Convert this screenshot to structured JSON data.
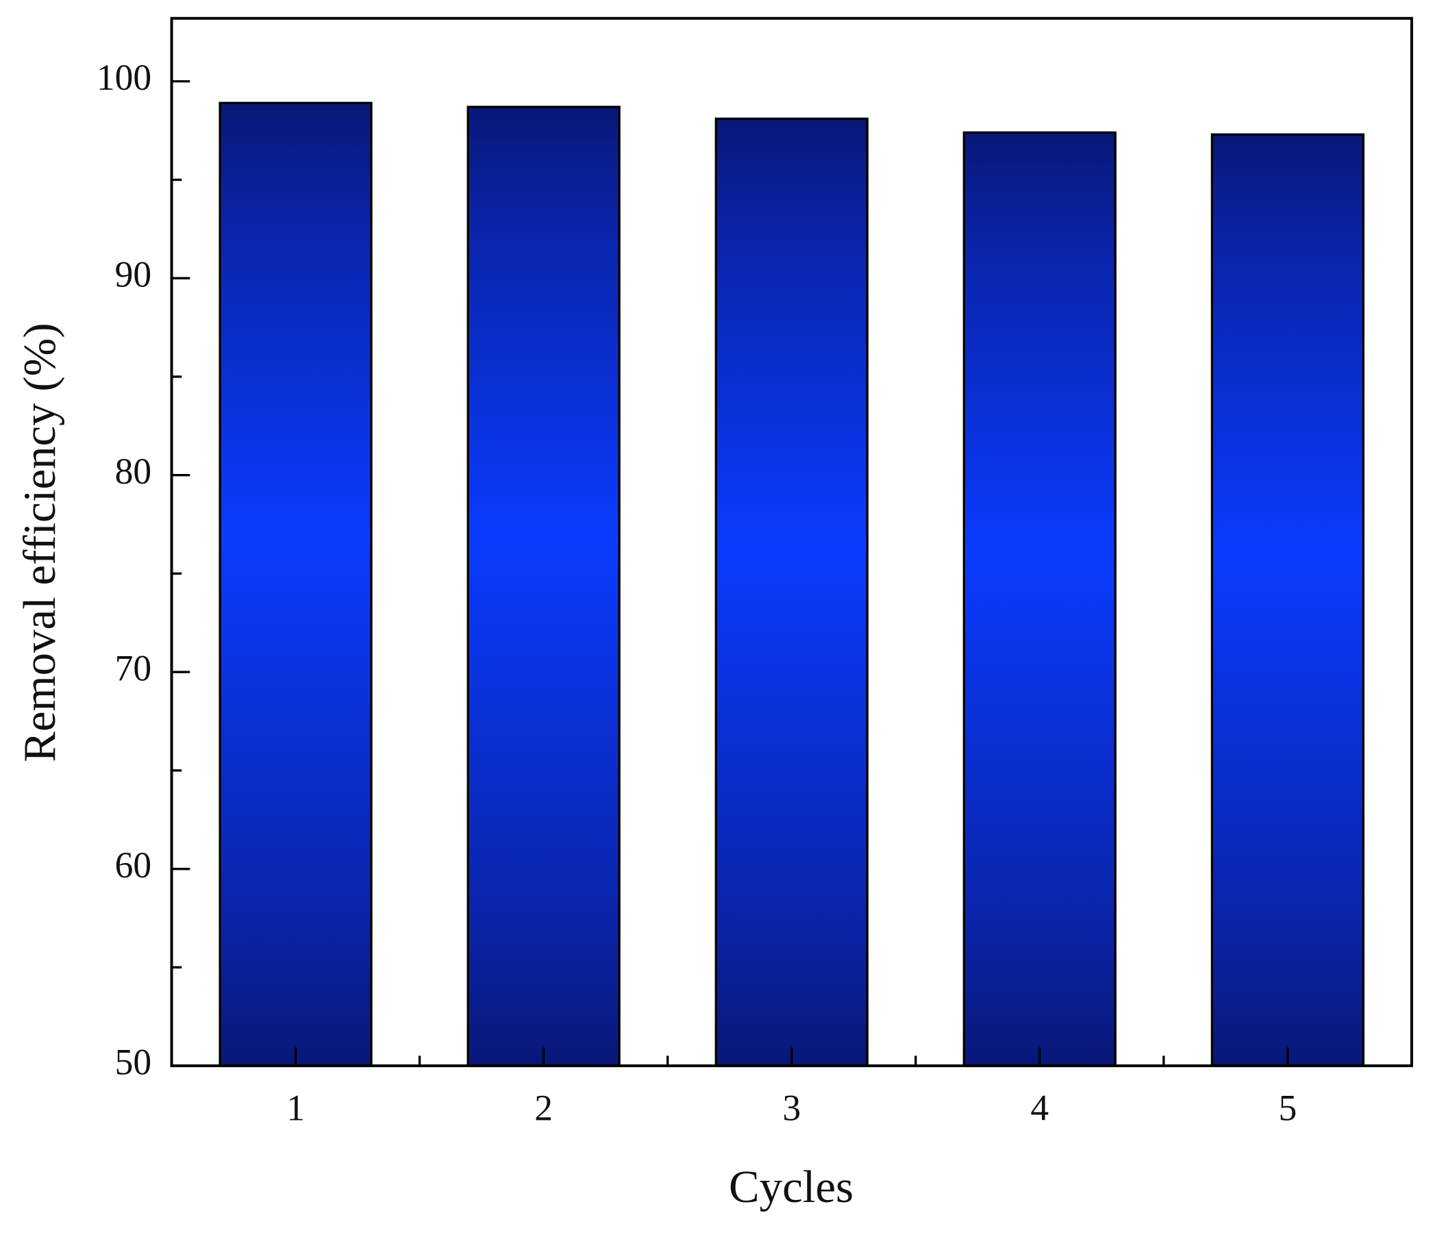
{
  "chart_data": {
    "type": "bar",
    "x_label": "Cycles",
    "y_label": "Removal efficiency (%)",
    "categories": [
      "1",
      "2",
      "3",
      "4",
      "5"
    ],
    "values": [
      98.9,
      98.7,
      98.1,
      97.4,
      97.3
    ],
    "color": "#0a3cff",
    "ylim": [
      50,
      103.2
    ],
    "yticks": [
      50,
      60,
      70,
      80,
      90,
      100
    ]
  }
}
